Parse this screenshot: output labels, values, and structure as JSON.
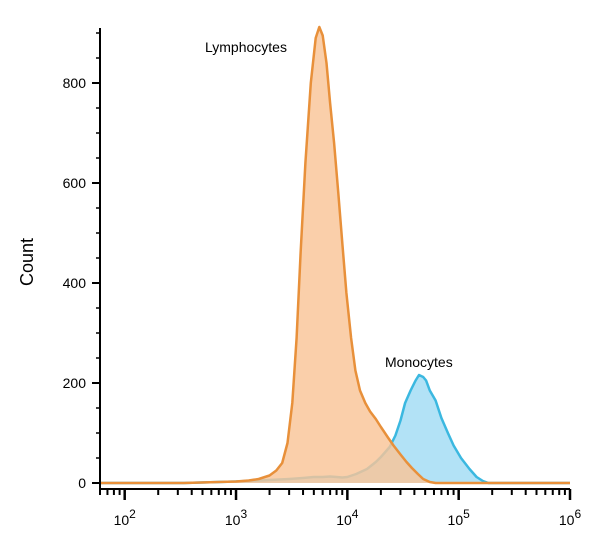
{
  "chart_data": {
    "type": "area",
    "title": "",
    "xlabel": "",
    "ylabel": "Count",
    "x_scale": "log",
    "xlim": [
      60,
      1000000
    ],
    "ylim": [
      -10,
      930
    ],
    "grid": false,
    "yticks": [
      {
        "value": 0,
        "label": "0"
      },
      {
        "value": 200,
        "label": "200"
      },
      {
        "value": 400,
        "label": "400"
      },
      {
        "value": 600,
        "label": "600"
      },
      {
        "value": 800,
        "label": "800"
      }
    ],
    "xticks": [
      {
        "value": 100,
        "base": "10",
        "exp": "2"
      },
      {
        "value": 1000,
        "base": "10",
        "exp": "3"
      },
      {
        "value": 10000,
        "base": "10",
        "exp": "4"
      },
      {
        "value": 100000,
        "base": "10",
        "exp": "5"
      },
      {
        "value": 1000000,
        "base": "10",
        "exp": "6"
      }
    ],
    "series": [
      {
        "name": "Monocytes",
        "line_color": "#3bb8e0",
        "fill_color": "#aee0f6",
        "points": [
          [
            60,
            0
          ],
          [
            340,
            0
          ],
          [
            1000,
            3
          ],
          [
            2000,
            6
          ],
          [
            3000,
            8
          ],
          [
            4000,
            10
          ],
          [
            5000,
            12
          ],
          [
            6000,
            12
          ],
          [
            7000,
            13
          ],
          [
            8000,
            12
          ],
          [
            9000,
            11
          ],
          [
            10000,
            12
          ],
          [
            12000,
            18
          ],
          [
            15000,
            28
          ],
          [
            18000,
            42
          ],
          [
            20000,
            52
          ],
          [
            24000,
            72
          ],
          [
            27000,
            95
          ],
          [
            30000,
            125
          ],
          [
            33000,
            160
          ],
          [
            37000,
            185
          ],
          [
            41000,
            205
          ],
          [
            44000,
            216
          ],
          [
            48000,
            212
          ],
          [
            51000,
            205
          ],
          [
            55000,
            185
          ],
          [
            62000,
            165
          ],
          [
            70000,
            130
          ],
          [
            80000,
            100
          ],
          [
            90000,
            75
          ],
          [
            105000,
            50
          ],
          [
            125000,
            28
          ],
          [
            145000,
            12
          ],
          [
            165000,
            4
          ],
          [
            185000,
            0
          ],
          [
            1000000,
            0
          ]
        ]
      },
      {
        "name": "Lymphocytes",
        "line_color": "#e8903a",
        "fill_color": "#f9c597",
        "points": [
          [
            60,
            0
          ],
          [
            340,
            0
          ],
          [
            1000,
            3
          ],
          [
            1300,
            5
          ],
          [
            1600,
            8
          ],
          [
            2000,
            15
          ],
          [
            2300,
            25
          ],
          [
            2600,
            40
          ],
          [
            2900,
            80
          ],
          [
            3200,
            160
          ],
          [
            3500,
            290
          ],
          [
            3800,
            460
          ],
          [
            4200,
            640
          ],
          [
            4700,
            800
          ],
          [
            5200,
            890
          ],
          [
            5600,
            912
          ],
          [
            6000,
            895
          ],
          [
            6500,
            840
          ],
          [
            7000,
            760
          ],
          [
            7600,
            680
          ],
          [
            8300,
            580
          ],
          [
            9000,
            480
          ],
          [
            9800,
            380
          ],
          [
            10800,
            290
          ],
          [
            11800,
            225
          ],
          [
            13000,
            185
          ],
          [
            14500,
            160
          ],
          [
            16000,
            143
          ],
          [
            18000,
            128
          ],
          [
            20000,
            112
          ],
          [
            23000,
            92
          ],
          [
            26000,
            75
          ],
          [
            30000,
            57
          ],
          [
            34000,
            42
          ],
          [
            38000,
            30
          ],
          [
            43000,
            18
          ],
          [
            48000,
            8
          ],
          [
            55000,
            2
          ],
          [
            62000,
            0
          ],
          [
            1000000,
            0
          ]
        ]
      }
    ]
  },
  "annotations": {
    "lymphocytes": "Lymphocytes",
    "monocytes": "Monocytes"
  }
}
